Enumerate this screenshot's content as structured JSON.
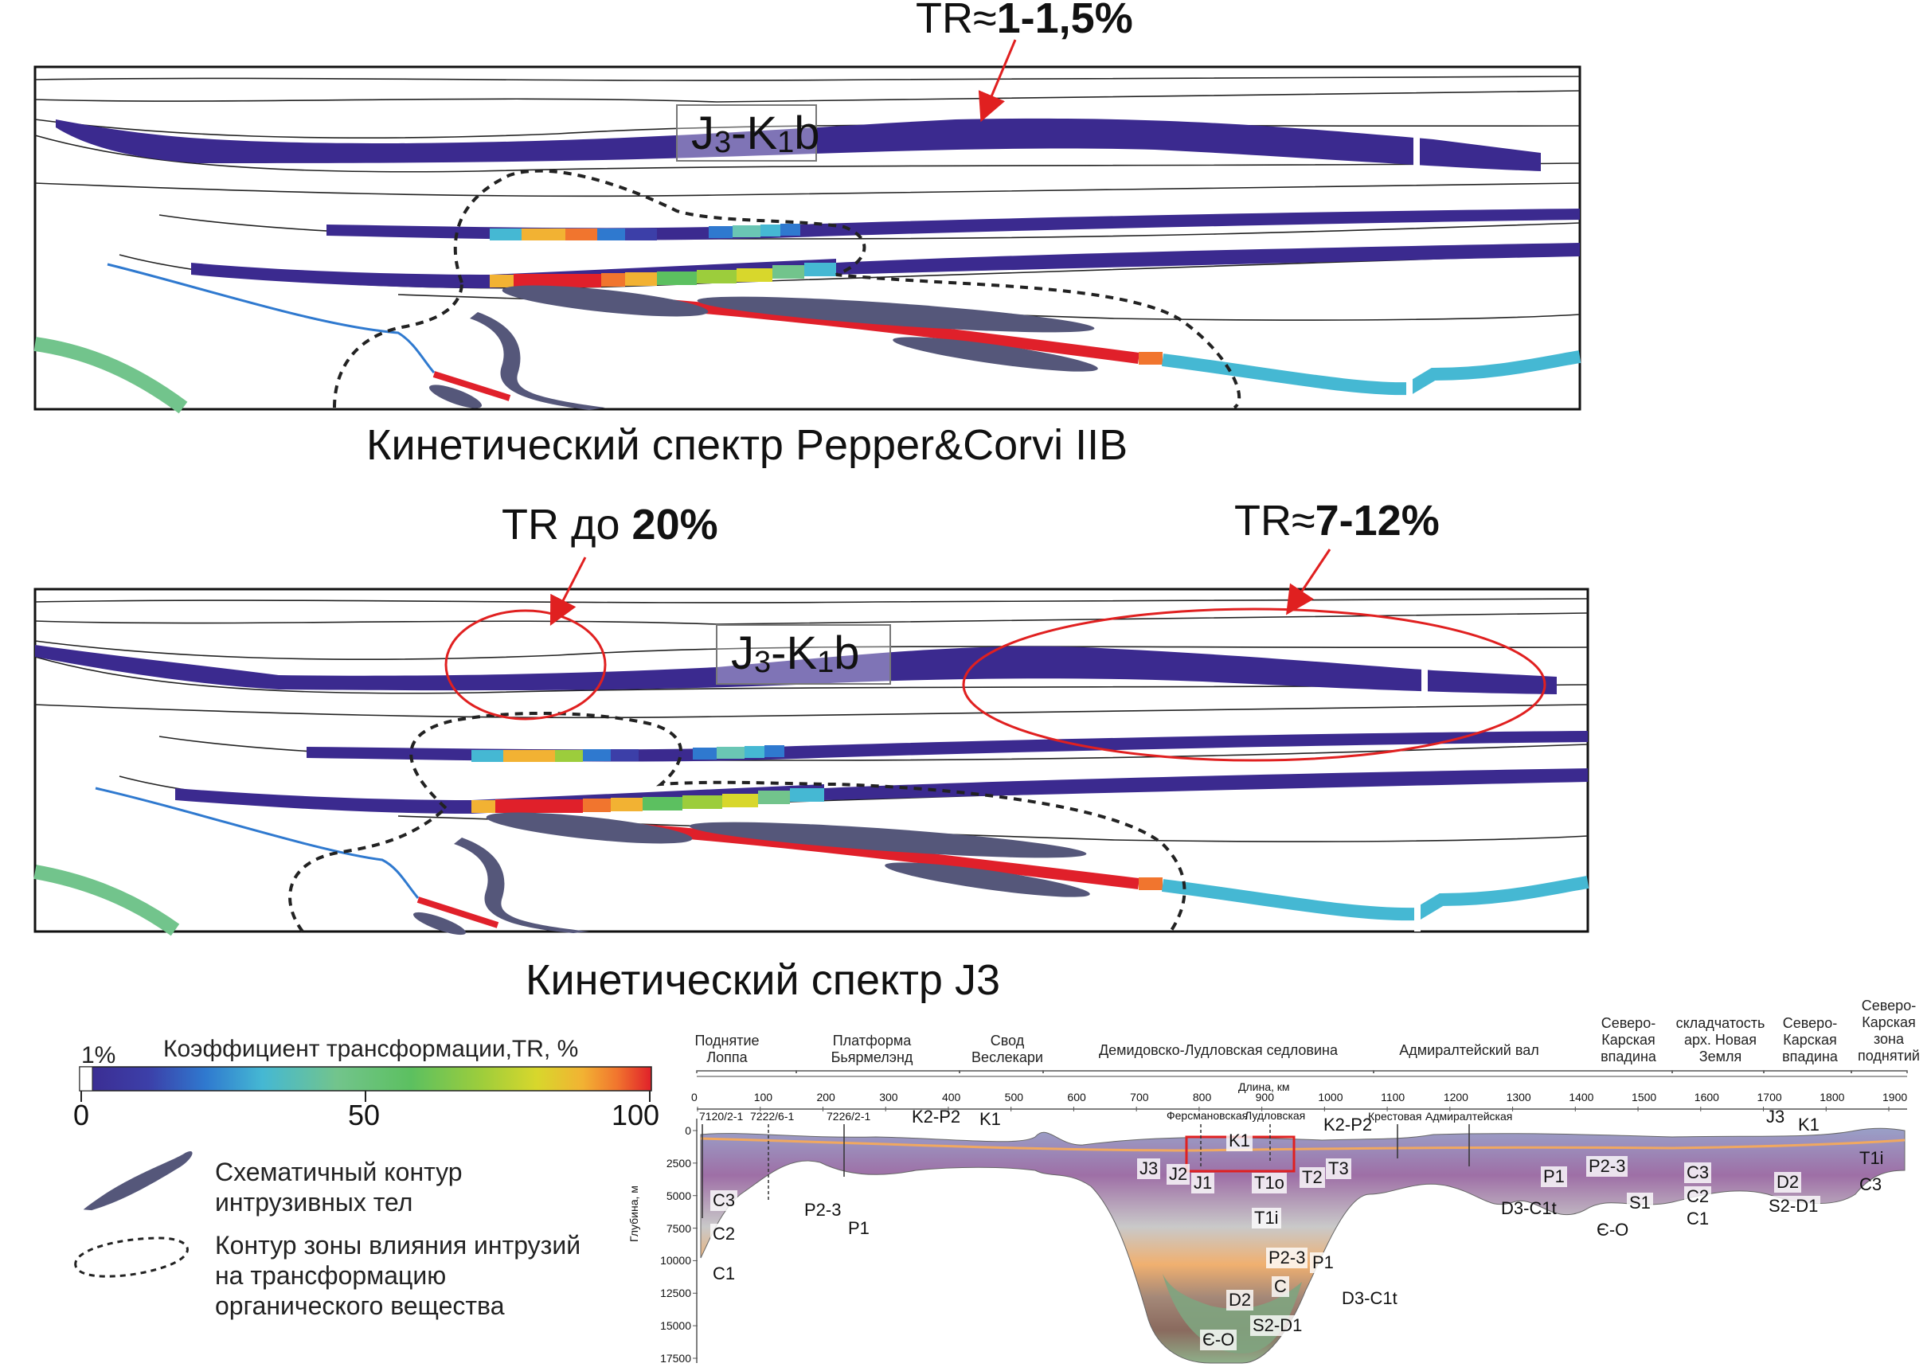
{
  "panel_top": {
    "tr_prefix": "TR",
    "tr_approx": "≈",
    "tr_value": "1-1,5%",
    "formation_label_main": "J",
    "formation_label_sub1": "3",
    "formation_label_mid": "-K",
    "formation_label_sub2": "1",
    "formation_label_end": "b",
    "caption": "Кинетический спектр Pepper&Corvi IIB"
  },
  "panel_bottom": {
    "tr_left_prefix": "TR до ",
    "tr_left_value": "20%",
    "tr_right_prefix": "TR",
    "tr_right_approx": "≈",
    "tr_right_value": "7-12%",
    "formation_label_main": "J",
    "formation_label_sub1": "3",
    "formation_label_mid": "-K",
    "formation_label_sub2": "1",
    "formation_label_end": "b",
    "caption": "Кинетический спектр J3"
  },
  "legend": {
    "scale_title": "Коэффициент трансформации,TR, %",
    "scale_min_label": "1%",
    "ticks": [
      "0",
      "50",
      "100"
    ],
    "colors": [
      "#3b2a8f",
      "#3c3fa8",
      "#3555c0",
      "#2f79cf",
      "#2f9ad8",
      "#45b8d3",
      "#6ac6b4",
      "#72c48c",
      "#5cc060",
      "#9ccd3c",
      "#d8d72c",
      "#f2b233",
      "#f1752e",
      "#e8352a",
      "#e0202a"
    ],
    "intrusion_label": "Схематичный контур интрузивных тел",
    "zone_label": "Контур зоны влияния интрузий на трансформацию органического вещества"
  },
  "profile": {
    "headers": [
      "Поднятие Лоппа",
      "Платформа Бьярмелэнд",
      "Свод Веслекари",
      "Демидовско-Лудловская седловина",
      "Адмиралтейский вал",
      "Северо-Карская впадина",
      "складчатость арх. Новая Земля",
      "Северо-Карская впадина",
      "Северо-Карская зона поднятий"
    ],
    "length_label": "Длина, км",
    "length_ticks": [
      "0",
      "100",
      "200",
      "300",
      "400",
      "500",
      "600",
      "700",
      "800",
      "900",
      "1000",
      "1100",
      "1200",
      "1300",
      "1400",
      "1500",
      "1600",
      "1700",
      "1800",
      "1900"
    ],
    "depth_label": "Глубина, м",
    "depth_ticks": [
      "0",
      "2500",
      "5000",
      "7500",
      "10000",
      "12500",
      "15000",
      "17500"
    ],
    "wells": [
      "7120/2-1",
      "7222/6-1",
      "7226/2-1",
      "Ферсмановская",
      "Лудловская",
      "Крестовая",
      "Адмиралтейская"
    ],
    "strat_labels": {
      "k2p2_a": "K2-P2",
      "k1_a": "K1",
      "k1_b": "K1",
      "k2p2_b": "K2-P2",
      "j3_a": "J3",
      "j2": "J2",
      "j1": "J1",
      "t1o": "T1o",
      "t2": "T2",
      "t3": "T3",
      "t1i_a": "T1i",
      "c3_a": "C3",
      "c2_a": "C2",
      "c1_a": "C1",
      "p23_a": "P2-3",
      "p1_a": "P1",
      "p23_b": "P2-3",
      "p1_b": "P1",
      "c_b": "C",
      "d3c1t_b": "D3-C1t",
      "d2_b": "D2",
      "s2d1_b": "S2-D1",
      "eo_b": "Є-O",
      "p1_c": "P1",
      "p23_c": "P2-3",
      "d3c1t_c": "D3-C1t",
      "s1": "S1",
      "eo_c": "Є-O",
      "c3_c": "C3",
      "c2_c": "C2",
      "c1_c": "C1",
      "j3_d": "J3",
      "k1_d": "K1",
      "d2_d": "D2",
      "s2d1_d": "S2-D1",
      "t1i_e": "T1i",
      "c3_e": "C3"
    }
  }
}
